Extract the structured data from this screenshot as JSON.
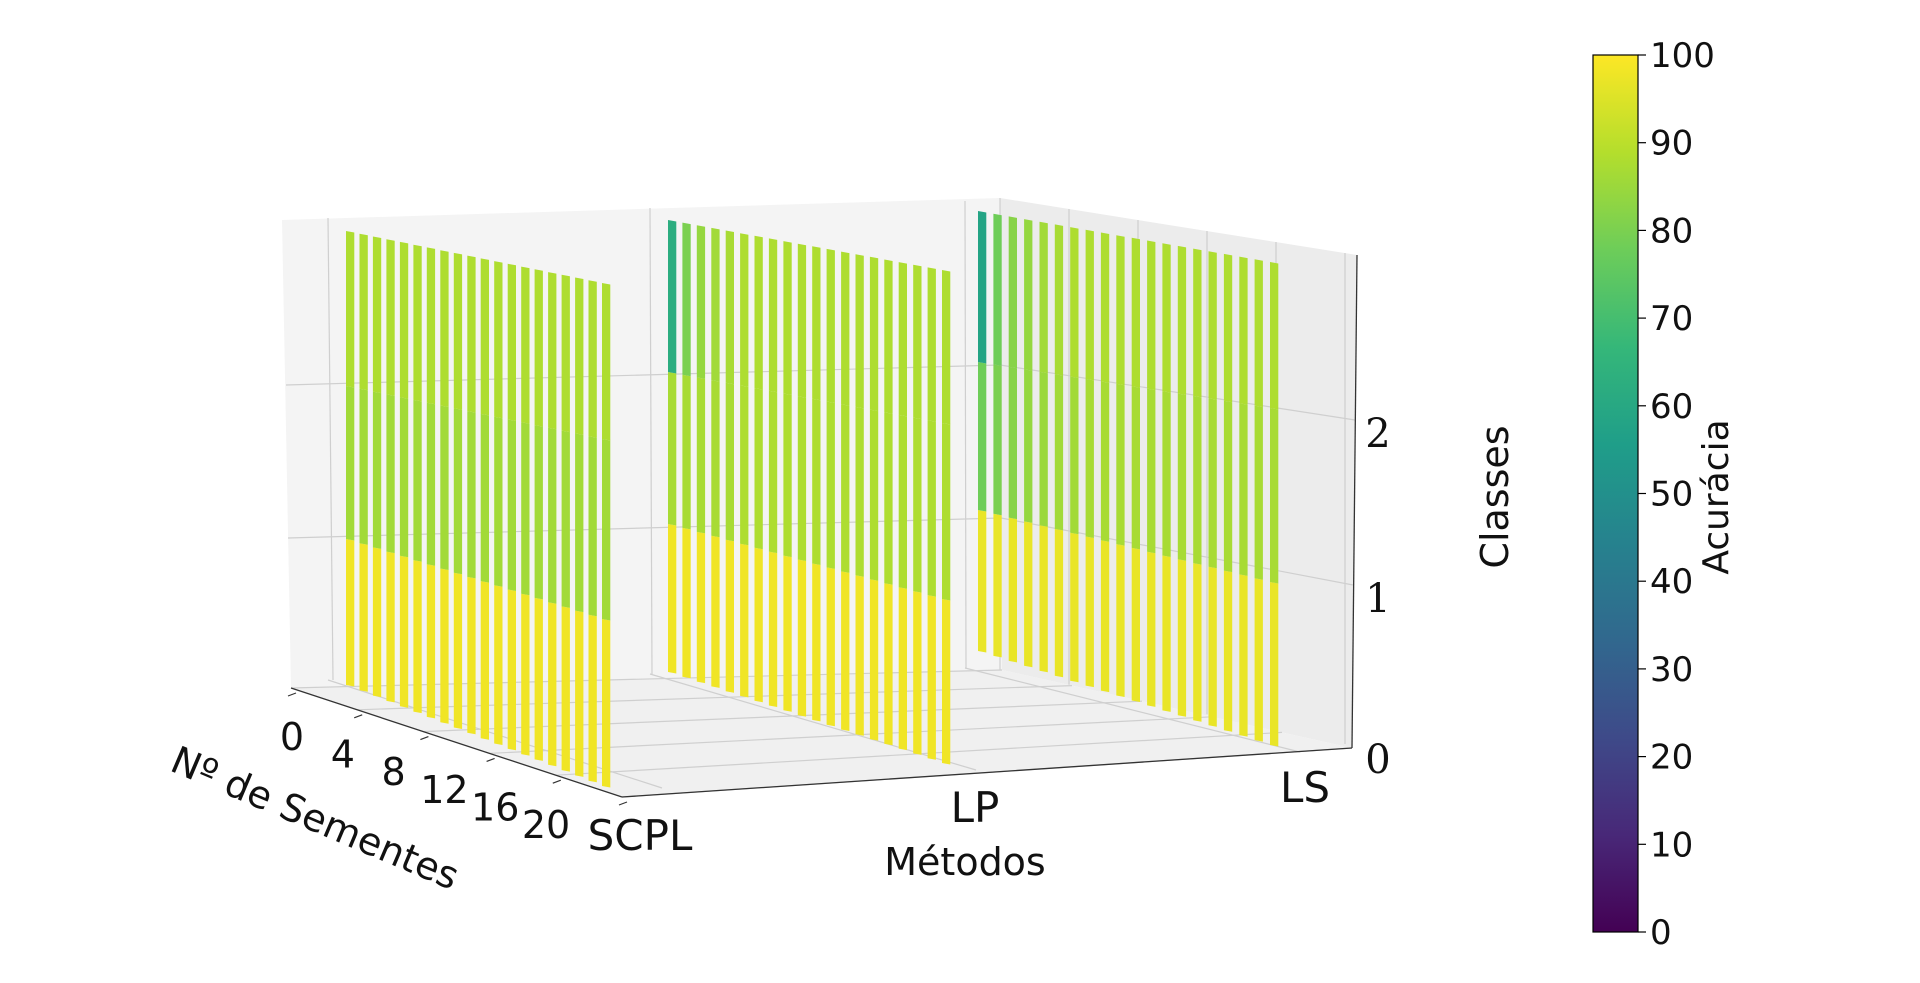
{
  "chart_data": {
    "type": "bar3d",
    "x_axis": {
      "label": "Métodos",
      "categories": [
        "SCPL",
        "LP",
        "LS"
      ]
    },
    "y_axis": {
      "label": "Nº de Sementes",
      "ticks": [
        "0",
        "4",
        "8",
        "12",
        "16",
        "20"
      ],
      "range": [
        0,
        20
      ]
    },
    "z_axis": {
      "label": "Classes",
      "ticks": [
        "0",
        "1",
        "2"
      ],
      "range": [
        0,
        3
      ]
    },
    "colorbar": {
      "label": "Acurácia",
      "colormap": "viridis",
      "range": [
        0,
        100
      ],
      "ticks": [
        "0",
        "10",
        "20",
        "30",
        "40",
        "50",
        "60",
        "70",
        "80",
        "90",
        "100"
      ]
    },
    "seeds": [
      0,
      1,
      2,
      3,
      4,
      5,
      6,
      7,
      8,
      9,
      10,
      11,
      12,
      13,
      14,
      15,
      16,
      17,
      18,
      19
    ],
    "classes": [
      0,
      1,
      2
    ],
    "series": [
      {
        "method": "SCPL",
        "class_accuracy": [
          [
            98,
            86,
            88
          ],
          [
            98,
            86,
            88
          ],
          [
            98,
            86,
            88
          ],
          [
            98,
            86,
            88
          ],
          [
            98,
            86,
            88
          ],
          [
            98,
            86,
            88
          ],
          [
            98,
            86,
            88
          ],
          [
            98,
            86,
            88
          ],
          [
            98,
            86,
            88
          ],
          [
            98,
            86,
            88
          ],
          [
            98,
            86,
            88
          ],
          [
            98,
            86,
            88
          ],
          [
            98,
            86,
            88
          ],
          [
            98,
            86,
            88
          ],
          [
            98,
            86,
            88
          ],
          [
            98,
            86,
            88
          ],
          [
            98,
            86,
            88
          ],
          [
            98,
            86,
            88
          ],
          [
            98,
            86,
            88
          ],
          [
            98,
            86,
            88
          ]
        ]
      },
      {
        "method": "LP",
        "class_accuracy": [
          [
            98,
            87,
            62
          ],
          [
            98,
            87,
            80
          ],
          [
            98,
            87,
            84
          ],
          [
            98,
            87,
            86
          ],
          [
            98,
            87,
            87
          ],
          [
            98,
            88,
            88
          ],
          [
            98,
            88,
            88
          ],
          [
            98,
            88,
            88
          ],
          [
            98,
            88,
            88
          ],
          [
            98,
            88,
            88
          ],
          [
            98,
            88,
            88
          ],
          [
            98,
            88,
            88
          ],
          [
            98,
            88,
            88
          ],
          [
            98,
            88,
            88
          ],
          [
            98,
            88,
            88
          ],
          [
            98,
            88,
            88
          ],
          [
            98,
            88,
            88
          ],
          [
            98,
            88,
            88
          ],
          [
            98,
            88,
            88
          ],
          [
            98,
            88,
            88
          ]
        ]
      },
      {
        "method": "LS",
        "class_accuracy": [
          [
            97,
            78,
            58
          ],
          [
            97,
            80,
            78
          ],
          [
            97,
            82,
            82
          ],
          [
            97,
            84,
            84
          ],
          [
            97,
            85,
            86
          ],
          [
            97,
            86,
            87
          ],
          [
            97,
            86,
            88
          ],
          [
            97,
            87,
            88
          ],
          [
            97,
            87,
            88
          ],
          [
            97,
            87,
            88
          ],
          [
            97,
            87,
            88
          ],
          [
            97,
            87,
            88
          ],
          [
            97,
            87,
            88
          ],
          [
            97,
            87,
            88
          ],
          [
            97,
            87,
            88
          ],
          [
            97,
            87,
            88
          ],
          [
            97,
            87,
            88
          ],
          [
            97,
            87,
            88
          ],
          [
            97,
            87,
            88
          ],
          [
            97,
            87,
            88
          ]
        ]
      }
    ]
  }
}
